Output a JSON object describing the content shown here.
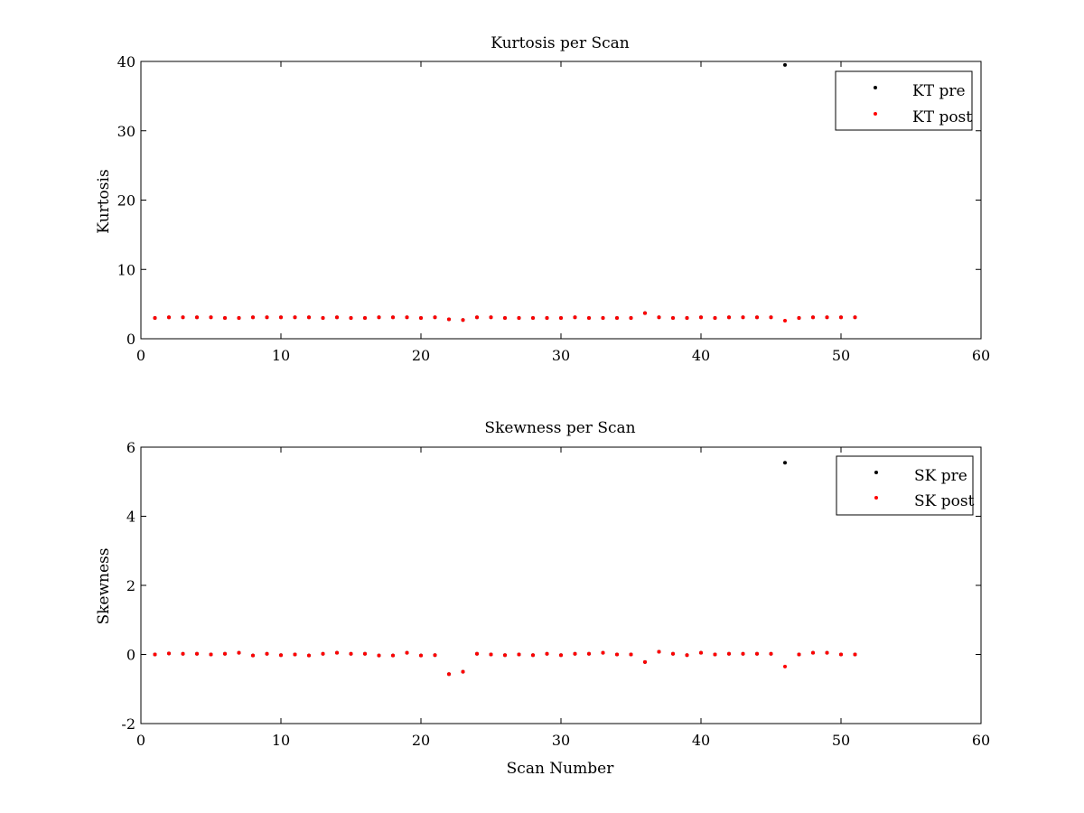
{
  "chart_data": [
    {
      "type": "scatter",
      "title": "Kurtosis per Scan",
      "xlabel": "",
      "ylabel": "Kurtosis",
      "xlim": [
        0,
        60
      ],
      "ylim": [
        0,
        40
      ],
      "xticks": [
        "0",
        "10",
        "20",
        "30",
        "40",
        "50",
        "60"
      ],
      "yticks": [
        "0",
        "10",
        "20",
        "30",
        "40"
      ],
      "grid": false,
      "legend_position": "top-right",
      "x": [
        1,
        2,
        3,
        4,
        5,
        6,
        7,
        8,
        9,
        10,
        11,
        12,
        13,
        14,
        15,
        16,
        17,
        18,
        19,
        20,
        21,
        22,
        23,
        24,
        25,
        26,
        27,
        28,
        29,
        30,
        31,
        32,
        33,
        34,
        35,
        36,
        37,
        38,
        39,
        40,
        41,
        42,
        43,
        44,
        45,
        46,
        47,
        48,
        49,
        50,
        51
      ],
      "series": [
        {
          "name": "KT pre",
          "color": "#000000",
          "values": [
            3.0,
            3.1,
            3.1,
            3.1,
            3.1,
            3.0,
            3.0,
            3.1,
            3.1,
            3.1,
            3.1,
            3.1,
            3.0,
            3.1,
            3.0,
            3.0,
            3.1,
            3.1,
            3.1,
            3.0,
            3.1,
            2.8,
            2.7,
            3.1,
            3.1,
            3.0,
            3.0,
            3.0,
            3.0,
            3.0,
            3.1,
            3.0,
            3.0,
            3.0,
            3.0,
            3.7,
            3.1,
            3.0,
            3.0,
            3.1,
            3.0,
            3.1,
            3.1,
            3.1,
            3.1,
            39.5,
            3.0,
            3.1,
            3.1,
            3.1,
            3.1
          ]
        },
        {
          "name": "KT post",
          "color": "#ff0000",
          "values": [
            3.0,
            3.1,
            3.1,
            3.1,
            3.1,
            3.0,
            3.0,
            3.1,
            3.1,
            3.1,
            3.1,
            3.1,
            3.0,
            3.1,
            3.0,
            3.0,
            3.1,
            3.1,
            3.1,
            3.0,
            3.1,
            2.8,
            2.7,
            3.1,
            3.1,
            3.0,
            3.0,
            3.0,
            3.0,
            3.0,
            3.1,
            3.0,
            3.0,
            3.0,
            3.0,
            3.7,
            3.1,
            3.0,
            3.0,
            3.1,
            3.0,
            3.1,
            3.1,
            3.1,
            3.1,
            2.6,
            3.0,
            3.1,
            3.1,
            3.1,
            3.1
          ]
        }
      ]
    },
    {
      "type": "scatter",
      "title": "Skewness per Scan",
      "xlabel": "Scan Number",
      "ylabel": "Skewness",
      "xlim": [
        0,
        60
      ],
      "ylim": [
        -2,
        6
      ],
      "xticks": [
        "0",
        "10",
        "20",
        "30",
        "40",
        "50",
        "60"
      ],
      "yticks": [
        "-2",
        "0",
        "2",
        "4",
        "6"
      ],
      "grid": false,
      "legend_position": "top-right",
      "x": [
        1,
        2,
        3,
        4,
        5,
        6,
        7,
        8,
        9,
        10,
        11,
        12,
        13,
        14,
        15,
        16,
        17,
        18,
        19,
        20,
        21,
        22,
        23,
        24,
        25,
        26,
        27,
        28,
        29,
        30,
        31,
        32,
        33,
        34,
        35,
        36,
        37,
        38,
        39,
        40,
        41,
        42,
        43,
        44,
        45,
        46,
        47,
        48,
        49,
        50,
        51
      ],
      "series": [
        {
          "name": "SK pre",
          "color": "#000000",
          "values": [
            0.0,
            0.03,
            0.02,
            0.02,
            0.0,
            0.02,
            0.05,
            -0.03,
            0.02,
            -0.02,
            0.0,
            -0.03,
            0.02,
            0.05,
            0.02,
            0.02,
            -0.03,
            -0.03,
            0.05,
            -0.03,
            -0.02,
            -0.57,
            -0.5,
            0.02,
            0.0,
            -0.02,
            0.0,
            -0.02,
            0.02,
            -0.02,
            0.02,
            0.02,
            0.05,
            0.0,
            0.0,
            -0.22,
            0.08,
            0.02,
            -0.02,
            0.05,
            0.0,
            0.02,
            0.02,
            0.02,
            0.02,
            5.55,
            0.0,
            0.05,
            0.05,
            0.0,
            0.0
          ]
        },
        {
          "name": "SK post",
          "color": "#ff0000",
          "values": [
            0.0,
            0.03,
            0.02,
            0.02,
            0.0,
            0.02,
            0.05,
            -0.03,
            0.02,
            -0.02,
            0.0,
            -0.03,
            0.02,
            0.05,
            0.02,
            0.02,
            -0.03,
            -0.03,
            0.05,
            -0.03,
            -0.02,
            -0.57,
            -0.5,
            0.02,
            0.0,
            -0.02,
            0.0,
            -0.02,
            0.02,
            -0.02,
            0.02,
            0.02,
            0.05,
            0.0,
            0.0,
            -0.22,
            0.08,
            0.02,
            -0.02,
            0.05,
            0.0,
            0.02,
            0.02,
            0.02,
            0.02,
            -0.35,
            0.0,
            0.05,
            0.05,
            0.0,
            0.0
          ]
        }
      ]
    }
  ]
}
